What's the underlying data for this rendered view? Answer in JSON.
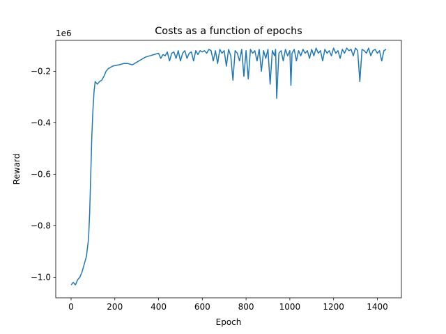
{
  "chart_data": {
    "type": "line",
    "title": "Costs as a function of epochs",
    "xlabel": "Epoch",
    "ylabel": "Reward",
    "offset_label": "1e6",
    "xlim": [
      -70,
      1510
    ],
    "ylim": [
      -1.08,
      -0.08
    ],
    "xticks": [
      0,
      200,
      400,
      600,
      800,
      1000,
      1200,
      1400
    ],
    "yticks": [
      -1.0,
      -0.8,
      -0.6,
      -0.4,
      -0.2
    ],
    "ytick_labels": [
      "−1.0",
      "−0.8",
      "−0.6",
      "−0.4",
      "−0.2"
    ],
    "grid": false,
    "line_color": "#1f77b4",
    "series": [
      {
        "x": [
          0,
          10,
          20,
          30,
          40,
          50,
          60,
          70,
          80,
          85,
          90,
          95,
          100,
          105,
          110,
          120,
          130,
          140,
          150,
          160,
          170,
          180,
          190,
          200,
          220,
          240,
          260,
          280,
          300,
          320,
          340,
          360,
          380,
          400,
          410,
          420,
          430,
          440,
          450,
          460,
          470,
          480,
          490,
          500,
          510,
          520,
          530,
          540,
          550,
          560,
          570,
          580,
          590,
          600,
          610,
          620,
          630,
          640,
          650,
          660,
          670,
          680,
          690,
          700,
          710,
          720,
          730,
          740,
          750,
          760,
          770,
          780,
          790,
          800,
          810,
          820,
          830,
          840,
          850,
          860,
          870,
          880,
          890,
          900,
          910,
          920,
          930,
          935,
          940,
          950,
          960,
          970,
          980,
          990,
          1000,
          1005,
          1010,
          1020,
          1030,
          1040,
          1050,
          1060,
          1070,
          1080,
          1090,
          1100,
          1110,
          1120,
          1130,
          1140,
          1150,
          1160,
          1170,
          1180,
          1190,
          1200,
          1210,
          1220,
          1230,
          1240,
          1250,
          1260,
          1270,
          1280,
          1290,
          1300,
          1310,
          1320,
          1330,
          1340,
          1350,
          1360,
          1370,
          1380,
          1390,
          1400,
          1410,
          1420,
          1430,
          1440
        ],
        "y": [
          -1.03,
          -1.02,
          -1.03,
          -1.01,
          -1.0,
          -0.98,
          -0.95,
          -0.92,
          -0.85,
          -0.75,
          -0.6,
          -0.45,
          -0.35,
          -0.28,
          -0.24,
          -0.25,
          -0.24,
          -0.235,
          -0.22,
          -0.2,
          -0.19,
          -0.185,
          -0.18,
          -0.178,
          -0.175,
          -0.17,
          -0.17,
          -0.175,
          -0.165,
          -0.155,
          -0.145,
          -0.14,
          -0.135,
          -0.13,
          -0.15,
          -0.135,
          -0.14,
          -0.125,
          -0.16,
          -0.13,
          -0.125,
          -0.15,
          -0.12,
          -0.16,
          -0.13,
          -0.12,
          -0.15,
          -0.13,
          -0.125,
          -0.16,
          -0.12,
          -0.135,
          -0.12,
          -0.125,
          -0.12,
          -0.13,
          -0.115,
          -0.12,
          -0.16,
          -0.12,
          -0.17,
          -0.115,
          -0.13,
          -0.12,
          -0.18,
          -0.115,
          -0.14,
          -0.235,
          -0.12,
          -0.13,
          -0.16,
          -0.115,
          -0.22,
          -0.12,
          -0.23,
          -0.115,
          -0.13,
          -0.12,
          -0.16,
          -0.115,
          -0.2,
          -0.12,
          -0.15,
          -0.115,
          -0.25,
          -0.12,
          -0.14,
          -0.115,
          -0.305,
          -0.13,
          -0.12,
          -0.16,
          -0.115,
          -0.14,
          -0.12,
          -0.255,
          -0.13,
          -0.115,
          -0.16,
          -0.12,
          -0.14,
          -0.115,
          -0.13,
          -0.12,
          -0.15,
          -0.115,
          -0.14,
          -0.11,
          -0.13,
          -0.12,
          -0.16,
          -0.115,
          -0.13,
          -0.12,
          -0.14,
          -0.11,
          -0.13,
          -0.12,
          -0.15,
          -0.115,
          -0.13,
          -0.11,
          -0.12,
          -0.115,
          -0.14,
          -0.11,
          -0.12,
          -0.24,
          -0.115,
          -0.12,
          -0.13,
          -0.11,
          -0.14,
          -0.12,
          -0.115,
          -0.13,
          -0.12,
          -0.16,
          -0.12,
          -0.115
        ]
      }
    ]
  }
}
